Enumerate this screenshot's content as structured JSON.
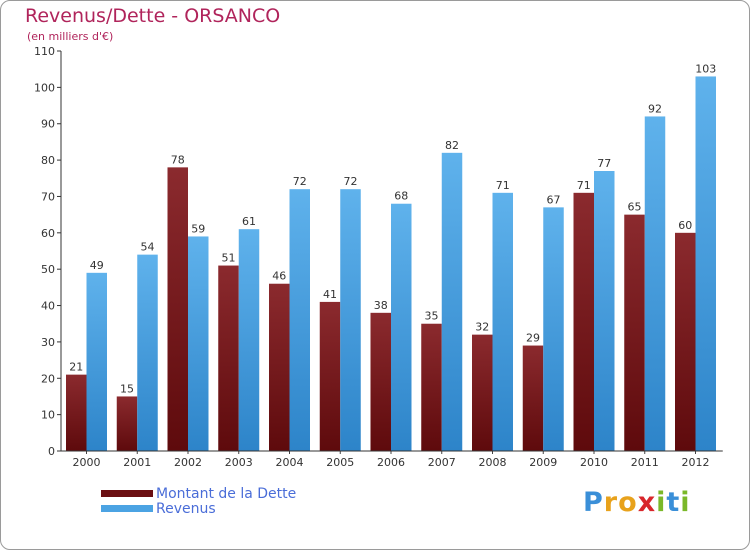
{
  "title": "Revenus/Dette - ORSANCO",
  "subtitle": "(en milliers d'€)",
  "brand": {
    "letters": [
      "P",
      "r",
      "o",
      "x",
      "i",
      "t",
      "i"
    ],
    "colors": [
      "#3a8fd8",
      "#e8a21c",
      "#e8a21c",
      "#d8262b",
      "#7ab829",
      "#3a8fd8",
      "#7ab829"
    ]
  },
  "chart_data": {
    "type": "bar",
    "categories": [
      "2000",
      "2001",
      "2002",
      "2003",
      "2004",
      "2005",
      "2006",
      "2007",
      "2008",
      "2009",
      "2010",
      "2011",
      "2012"
    ],
    "series": [
      {
        "name": "Montant de la Dette",
        "color": "#7a1518",
        "values": [
          21,
          15,
          78,
          51,
          46,
          41,
          38,
          35,
          32,
          29,
          71,
          65,
          60
        ]
      },
      {
        "name": "Revenus",
        "color": "#4ba3e3",
        "values": [
          49,
          54,
          59,
          61,
          72,
          72,
          68,
          82,
          71,
          67,
          77,
          92,
          103
        ]
      }
    ],
    "yticks": [
      0,
      10,
      20,
      30,
      40,
      50,
      60,
      70,
      80,
      90,
      100,
      110
    ],
    "ylim": [
      0,
      110
    ],
    "grid": false,
    "legend": "bottom-left"
  }
}
